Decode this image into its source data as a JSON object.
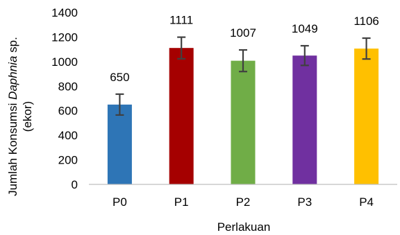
{
  "chart_data": {
    "type": "bar",
    "categories": [
      "P0",
      "P1",
      "P2",
      "P3",
      "P4"
    ],
    "values": [
      650,
      1111,
      1007,
      1049,
      1106
    ],
    "data_labels": [
      "650",
      "1111",
      "1007",
      "1049",
      "1106"
    ],
    "error": [
      85,
      88,
      88,
      80,
      85
    ],
    "colors": [
      "#2e75b6",
      "#a50000",
      "#70ad47",
      "#7030a0",
      "#ffc000"
    ],
    "xlabel": "Perlakuan",
    "ylabel": {
      "line1_prefix": "Jumlah Konsumsi ",
      "line1_italic": "Daphnia",
      "line1_suffix": " sp.",
      "line2": "(ekor)"
    },
    "ylim": [
      0,
      1400
    ],
    "yticks": [
      "0",
      "200",
      "400",
      "600",
      "800",
      "1000",
      "1200",
      "1400"
    ],
    "grid": false
  }
}
